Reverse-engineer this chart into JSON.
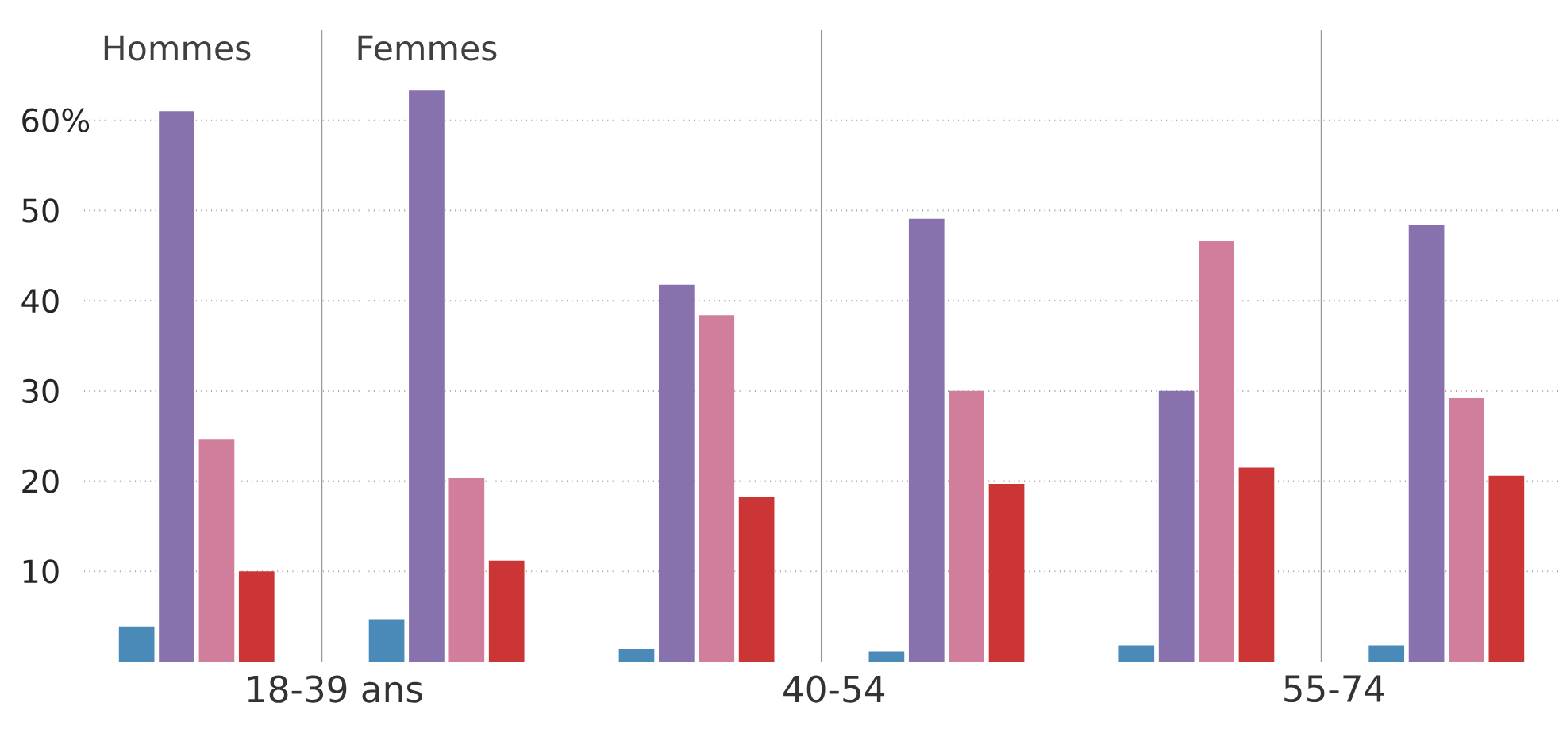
{
  "chart_data": {
    "type": "bar",
    "categories": [
      "Hommes",
      "Femmes",
      null,
      null,
      null,
      null
    ],
    "series": [
      {
        "color": "#4a8ab8",
        "values": [
          3.9,
          4.7,
          1.4,
          1.1,
          1.8,
          1.8
        ]
      },
      {
        "color": "#8872ae",
        "values": [
          61,
          63.3,
          41.8,
          49.1,
          30,
          48.4
        ]
      },
      {
        "color": "#d07e9c",
        "values": [
          24.6,
          20.4,
          38.4,
          30,
          46.6,
          29.2
        ]
      },
      {
        "color": "#cc3535",
        "values": [
          10,
          11.2,
          18.2,
          19.7,
          21.5,
          20.6
        ]
      }
    ],
    "ylim": [
      0,
      70
    ],
    "yticks": [
      {
        "value": 10,
        "label": "10"
      },
      {
        "value": 20,
        "label": "20"
      },
      {
        "value": 30,
        "label": "30"
      },
      {
        "value": 40,
        "label": "40"
      },
      {
        "value": 50,
        "label": "50"
      },
      {
        "value": 60,
        "label": "60%"
      }
    ],
    "grid": "y",
    "annotations": [
      "18-39 ans",
      "40-54",
      "55-74"
    ]
  }
}
